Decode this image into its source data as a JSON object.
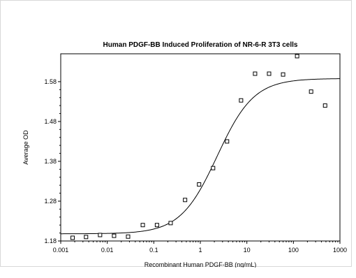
{
  "chart_data": {
    "type": "scatter",
    "title": "Human PDGF-BB Induced Proliferation of NR-6-R 3T3 cells",
    "xlabel": "Recombinant Human PDGF-BB (ng/mL)",
    "ylabel": "Average OD",
    "x_scale": "log",
    "xlim": [
      0.001,
      1000
    ],
    "ylim": [
      1.18,
      1.65
    ],
    "x_ticks": [
      "0.001",
      "0.01",
      "0.1",
      "1",
      "10",
      "100",
      "1000"
    ],
    "y_ticks": [
      "1.18",
      "1.28",
      "1.38",
      "1.48",
      "1.58"
    ],
    "grid": false,
    "legend": "none",
    "series": [
      {
        "type": "scatter",
        "marker": "open-square",
        "x": [
          0.0018,
          0.0035,
          0.007,
          0.014,
          0.028,
          0.058,
          0.117,
          0.23,
          0.47,
          0.94,
          1.88,
          3.75,
          7.5,
          15,
          30,
          60,
          120,
          240,
          480
        ],
        "y": [
          1.188,
          1.19,
          1.195,
          1.193,
          1.191,
          1.22,
          1.22,
          1.225,
          1.283,
          1.322,
          1.363,
          1.43,
          1.533,
          1.6,
          1.6,
          1.598,
          1.644,
          1.555,
          1.52
        ]
      },
      {
        "type": "line",
        "fit": "4PL",
        "bottom": 1.198,
        "top": 1.588,
        "ec50": 2.3,
        "hill": 1.1
      }
    ]
  }
}
